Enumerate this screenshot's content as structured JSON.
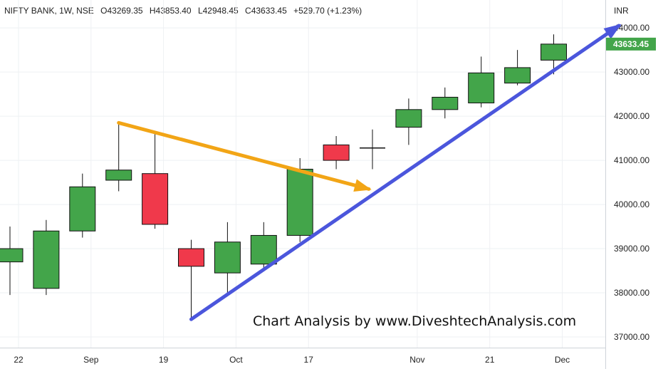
{
  "header": {
    "symbol": "NIFTY BANK, 1W, NSE",
    "open": "O43269.35",
    "high": "H43853.40",
    "low": "L42948.45",
    "close": "C43633.45",
    "change": "+529.70 (+1.23%)"
  },
  "axis": {
    "unit": "INR"
  },
  "watermark": "Chart Analysis by www.DiveshtechAnalysis.com",
  "colors": {
    "up": "#43a54a",
    "down": "#f0394b",
    "trend_up": "#4b56dc",
    "trend_down": "#f2a516",
    "last_price_bg": "#43a54a"
  },
  "chart_data": {
    "type": "candlestick",
    "y_axis_position": "right",
    "ylim": [
      36700,
      44600
    ],
    "y_ticks": [
      37000,
      38000,
      39000,
      40000,
      41000,
      42000,
      43000,
      44000
    ],
    "y_tick_labels": [
      "37000.00",
      "38000.00",
      "39000.00",
      "40000.00",
      "41000.00",
      "42000.00",
      "43000.00",
      "44000.00"
    ],
    "x_tick_labels": [
      {
        "label": "22",
        "index": 0
      },
      {
        "label": "Sep",
        "index": 2
      },
      {
        "label": "19",
        "index": 4
      },
      {
        "label": "Oct",
        "index": 6
      },
      {
        "label": "17",
        "index": 8
      },
      {
        "label": "Nov",
        "index": 11
      },
      {
        "label": "21",
        "index": 13
      },
      {
        "label": "Dec",
        "index": 15
      }
    ],
    "candles": [
      {
        "o": 38700,
        "h": 39500,
        "l": 37950,
        "c": 39000
      },
      {
        "o": 38100,
        "h": 39650,
        "l": 37950,
        "c": 39400
      },
      {
        "o": 39400,
        "h": 40700,
        "l": 39250,
        "c": 40400
      },
      {
        "o": 40550,
        "h": 41850,
        "l": 40300,
        "c": 40780
      },
      {
        "o": 40700,
        "h": 41600,
        "l": 39450,
        "c": 39550
      },
      {
        "o": 39000,
        "h": 39200,
        "l": 37400,
        "c": 38600
      },
      {
        "o": 38450,
        "h": 39600,
        "l": 37950,
        "c": 39150
      },
      {
        "o": 38650,
        "h": 39600,
        "l": 38500,
        "c": 39300
      },
      {
        "o": 39300,
        "h": 41050,
        "l": 39150,
        "c": 40800
      },
      {
        "o": 41350,
        "h": 41550,
        "l": 40800,
        "c": 41000
      },
      {
        "o": 41280,
        "h": 41700,
        "l": 40800,
        "c": 41250
      },
      {
        "o": 41750,
        "h": 42400,
        "l": 41350,
        "c": 42150
      },
      {
        "o": 42150,
        "h": 42650,
        "l": 41950,
        "c": 42430
      },
      {
        "o": 42300,
        "h": 43350,
        "l": 42200,
        "c": 42980
      },
      {
        "o": 42750,
        "h": 43500,
        "l": 42700,
        "c": 43100
      },
      {
        "o": 43269.35,
        "h": 43853.4,
        "l": 42948.45,
        "c": 43633.45
      }
    ],
    "last_price": 43633.45,
    "last_price_label": "43633.45",
    "trend_lines": [
      {
        "name": "uptrend",
        "from": {
          "index": 5,
          "value": 37400
        },
        "to": {
          "index": 16.8,
          "value": 44050
        },
        "color": "#4b56dc",
        "arrow": true
      },
      {
        "name": "downtrend",
        "from": {
          "index": 3,
          "value": 41850
        },
        "to": {
          "index": 9.9,
          "value": 40350
        },
        "color": "#f2a516",
        "arrow": true
      }
    ],
    "grid": true
  }
}
